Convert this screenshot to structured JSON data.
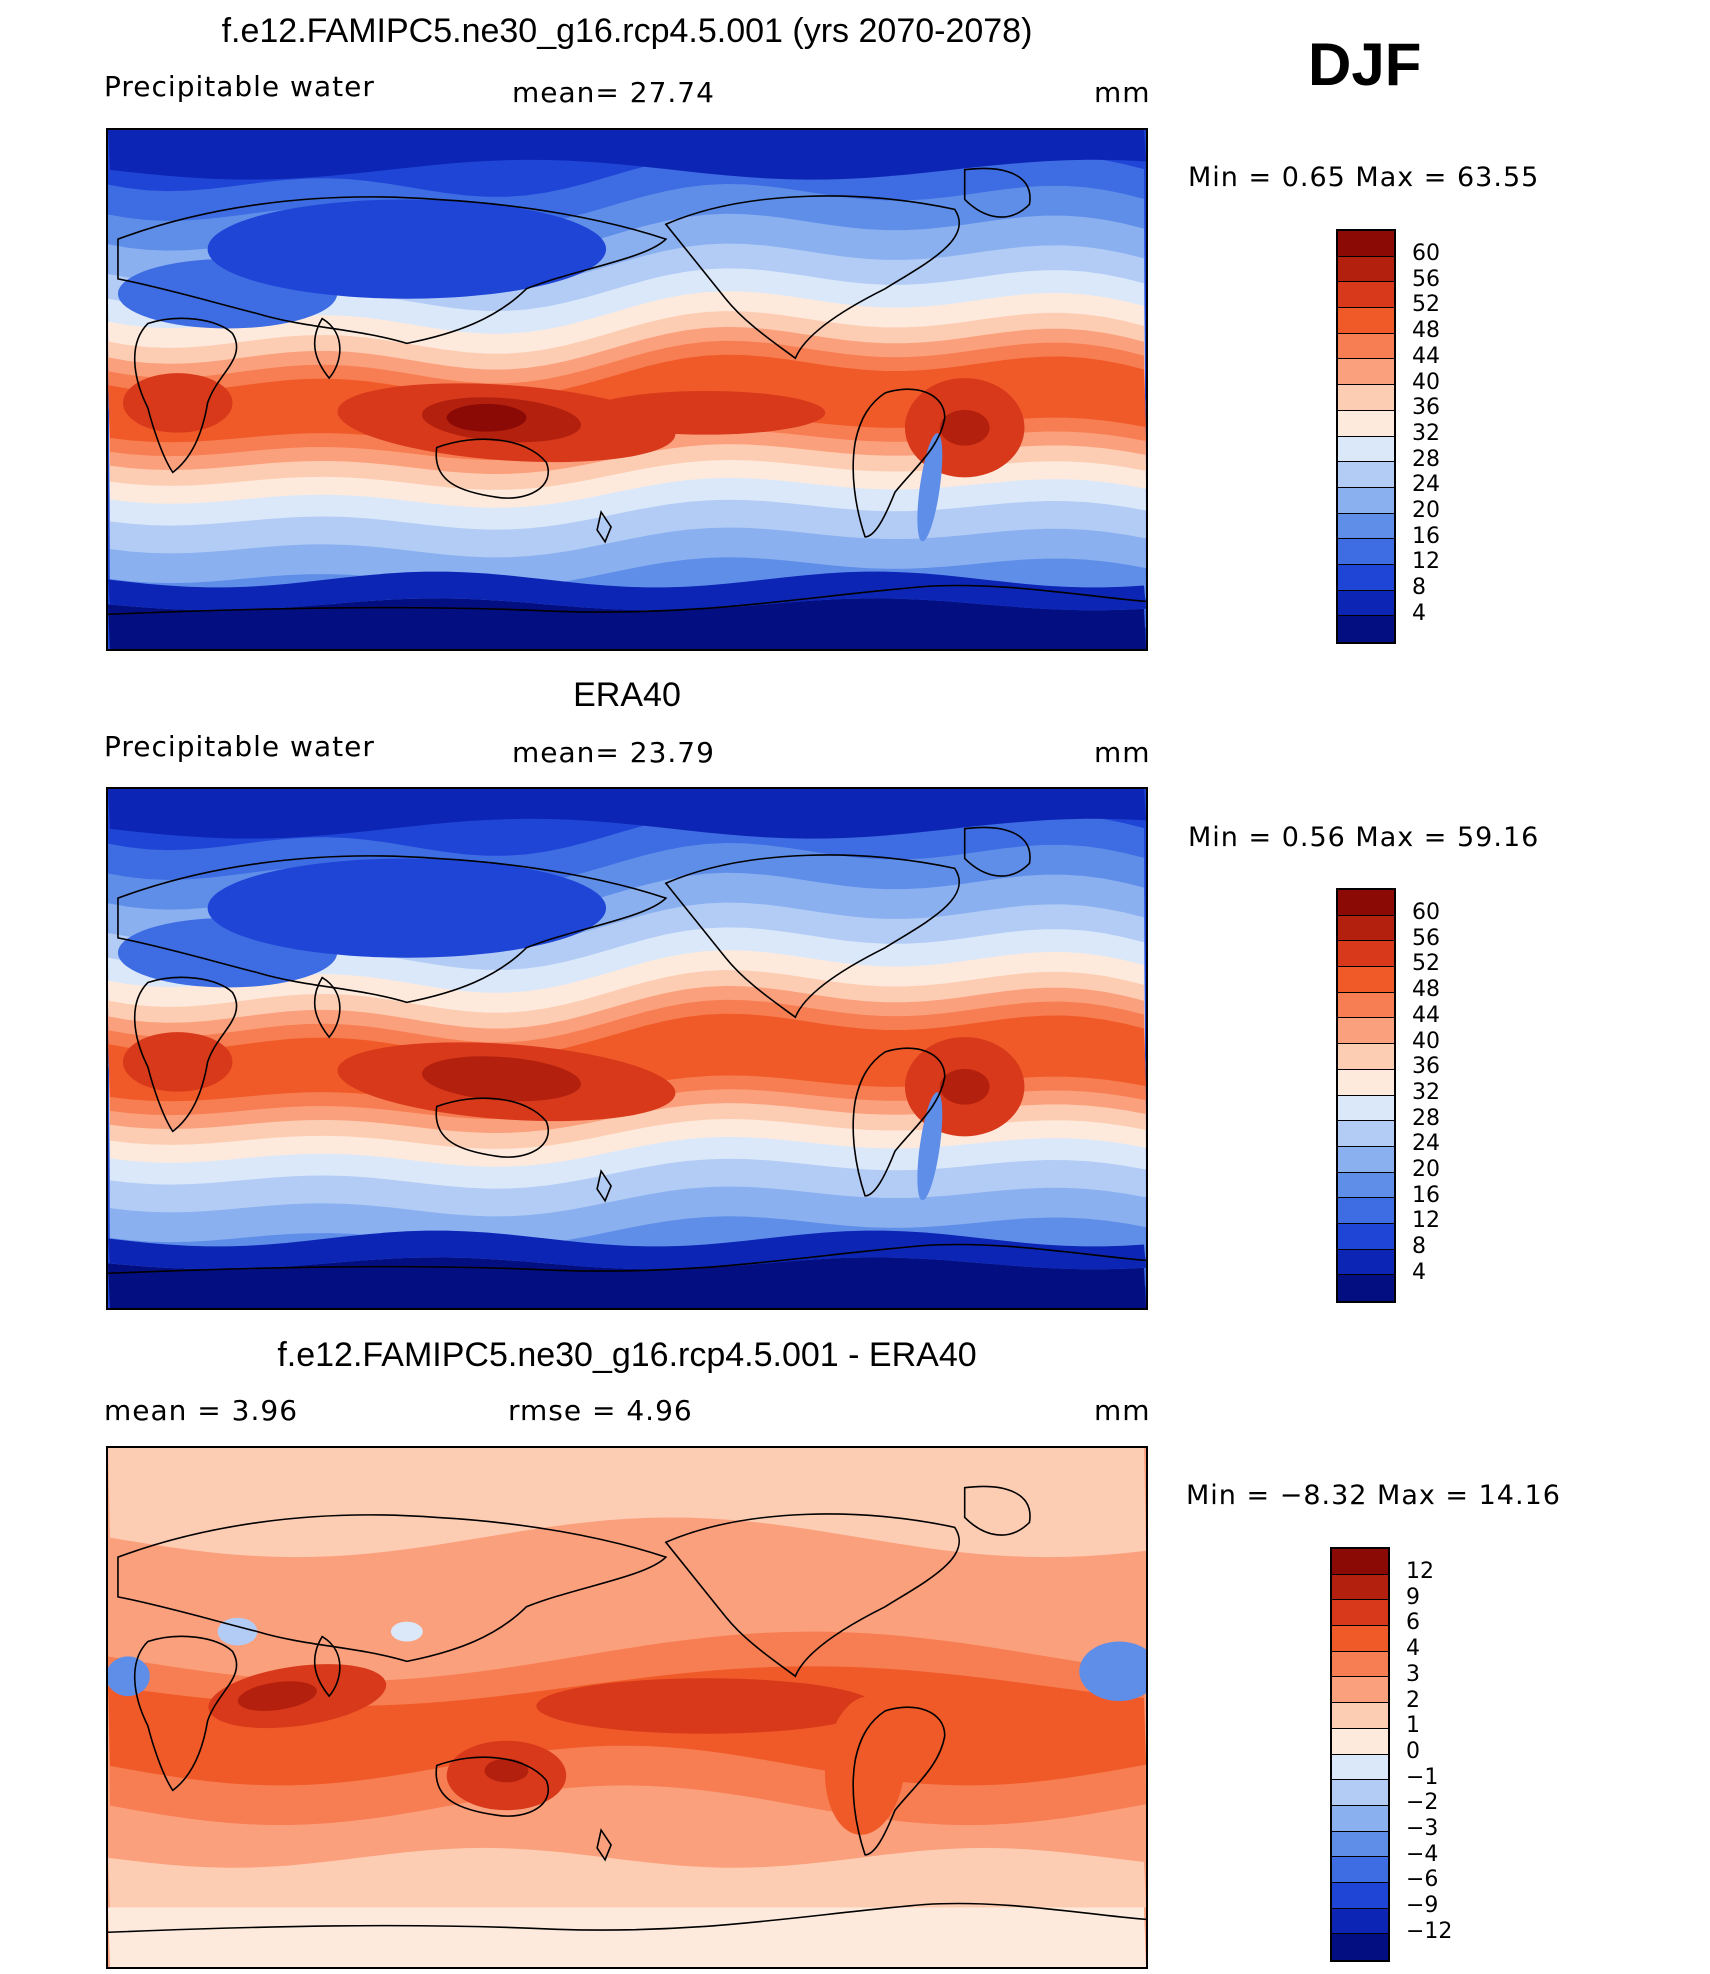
{
  "season": "DJF",
  "panels": [
    {
      "title": "f.e12.FAMIPC5.ne30_g16.rcp4.5.001 (yrs 2070-2078)",
      "left_label": "Precipitable  water",
      "center_label": "mean=   27.74",
      "units": "mm",
      "min_max": "Min  =     0.65  Max  =    63.55",
      "colorbar": {
        "labels": [
          "60",
          "56",
          "52",
          "48",
          "44",
          "40",
          "36",
          "32",
          "28",
          "24",
          "20",
          "16",
          "12",
          "8",
          "4"
        ],
        "colors": [
          "#8b0a06",
          "#b3200e",
          "#d8391a",
          "#f05a28",
          "#f77e52",
          "#fba07d",
          "#fdcdb3",
          "#fdeadc",
          "#dbe8fa",
          "#b3ccf5",
          "#8ab0f0",
          "#5f8ee9",
          "#3d6ce3",
          "#1f45d6",
          "#0c25b5",
          "#030e80"
        ]
      },
      "map": {
        "kind": "pw_model"
      }
    },
    {
      "title": "ERA40",
      "left_label": "Precipitable  water",
      "center_label": "mean=   23.79",
      "units": "mm",
      "min_max": "Min  =     0.56  Max  =    59.16",
      "colorbar": {
        "labels": [
          "60",
          "56",
          "52",
          "48",
          "44",
          "40",
          "36",
          "32",
          "28",
          "24",
          "20",
          "16",
          "12",
          "8",
          "4"
        ],
        "colors": [
          "#8b0a06",
          "#b3200e",
          "#d8391a",
          "#f05a28",
          "#f77e52",
          "#fba07d",
          "#fdcdb3",
          "#fdeadc",
          "#dbe8fa",
          "#b3ccf5",
          "#8ab0f0",
          "#5f8ee9",
          "#3d6ce3",
          "#1f45d6",
          "#0c25b5",
          "#030e80"
        ]
      },
      "map": {
        "kind": "pw_obs"
      }
    },
    {
      "title": "f.e12.FAMIPC5.ne30_g16.rcp4.5.001 - ERA40",
      "left_label": "mean  =      3.96",
      "center_label": "rmse  =      4.96",
      "units": "mm",
      "min_max": "Min  =   −8.32  Max  =    14.16",
      "colorbar": {
        "labels": [
          "12",
          "9",
          "6",
          "4",
          "3",
          "2",
          "1",
          "0",
          "−1",
          "−2",
          "−3",
          "−4",
          "−6",
          "−9",
          "−12"
        ],
        "colors": [
          "#8b0a06",
          "#b3200e",
          "#d8391a",
          "#f05a28",
          "#f77e52",
          "#fba07d",
          "#fdcdb3",
          "#fdeadc",
          "#dbe8fa",
          "#b3ccf5",
          "#8ab0f0",
          "#5f8ee9",
          "#3d6ce3",
          "#1f45d6",
          "#0c25b5",
          "#030e80"
        ]
      },
      "map": {
        "kind": "diff"
      }
    }
  ]
}
